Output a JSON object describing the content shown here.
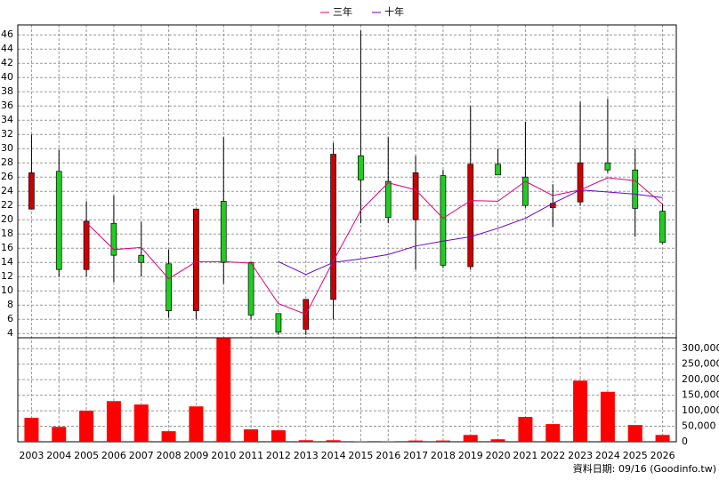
{
  "chart_data": {
    "type": "candlestick",
    "categories": [
      "2003",
      "2004",
      "2005",
      "2006",
      "2007",
      "2008",
      "2009",
      "2010",
      "2011",
      "2012",
      "2013",
      "2014",
      "2015",
      "2016",
      "2017",
      "2018",
      "2019",
      "2020",
      "2021",
      "2022",
      "2023",
      "2024",
      "2025",
      "2026"
    ],
    "candles": {
      "up_color": "#cc0000",
      "down_color": "#22cc22",
      "open": [
        21.5,
        26.8,
        13,
        19.5,
        15,
        13.8,
        7.2,
        22.6,
        14,
        6.8,
        4.6,
        8.8,
        29,
        25.4,
        20,
        26.2,
        13.4,
        27.8,
        26,
        21.7,
        22.5,
        28,
        27,
        21.2
      ],
      "high": [
        32,
        29.8,
        22.6,
        23.4,
        19.7,
        15.8,
        21.5,
        31.6,
        14,
        6.8,
        8.8,
        30.8,
        46.6,
        31.6,
        29,
        27,
        36,
        30,
        33.8,
        25,
        36.6,
        37,
        30,
        22.2
      ],
      "low": [
        21.5,
        12,
        12,
        11.2,
        12,
        6.2,
        6,
        11,
        6,
        3.8,
        3.8,
        6,
        19.5,
        19.5,
        13,
        13.2,
        13,
        26.3,
        21.7,
        19,
        22,
        26.6,
        17.6,
        16.6
      ],
      "close": [
        26.6,
        13,
        19.8,
        15,
        14,
        7.2,
        21.5,
        14,
        6.6,
        4.2,
        8.8,
        29.2,
        25.6,
        20.3,
        26.6,
        13.6,
        27.8,
        26.3,
        22,
        22.3,
        28,
        27,
        21.6,
        16.8
      ]
    },
    "lines": [
      {
        "name": "三年",
        "color": "#e0007f",
        "values": [
          null,
          null,
          19.6,
          15.8,
          16.1,
          11.7,
          14.1,
          14.1,
          13.9,
          8.2,
          6.7,
          14.2,
          21.3,
          25.2,
          24.2,
          20.2,
          22.7,
          22.6,
          25.4,
          23.4,
          24.2,
          25.9,
          25.5,
          22.2
        ]
      },
      {
        "name": "十年",
        "color": "#6a00d0",
        "values": [
          null,
          null,
          null,
          null,
          null,
          null,
          null,
          null,
          null,
          14.1,
          12.3,
          14,
          14.5,
          15.1,
          16.3,
          17,
          17.6,
          18.8,
          20.2,
          22.3,
          24.2,
          23.9,
          23.6,
          23.1
        ]
      }
    ],
    "volume": {
      "color": "#ff0000",
      "values": [
        77000,
        48000,
        100000,
        131000,
        120000,
        34000,
        114000,
        334000,
        40000,
        37000,
        5000,
        5000,
        1000,
        1000,
        4000,
        4000,
        22000,
        8000,
        80000,
        57000,
        197000,
        161000,
        54000,
        22000
      ]
    },
    "ylim": [
      3.4,
      47.4
    ],
    "yticks": [
      4,
      6,
      8,
      10,
      12,
      14,
      16,
      18,
      20,
      22,
      24,
      26,
      28,
      30,
      32,
      34,
      36,
      38,
      40,
      42,
      44,
      46
    ],
    "y2lim": [
      0,
      335000
    ],
    "y2ticks": [
      0,
      {
        "value": 50000,
        "label": "50,000"
      },
      {
        "value": 100000,
        "label": "100,000"
      },
      {
        "value": 150000,
        "label": "150,000"
      },
      {
        "value": 200000,
        "label": "200,000"
      },
      {
        "value": 250000,
        "label": "250,000"
      },
      {
        "value": 300000,
        "label": "300,000"
      }
    ],
    "grid": true,
    "footer": "資料日期: 09/16 (Goodinfo.tw)"
  }
}
